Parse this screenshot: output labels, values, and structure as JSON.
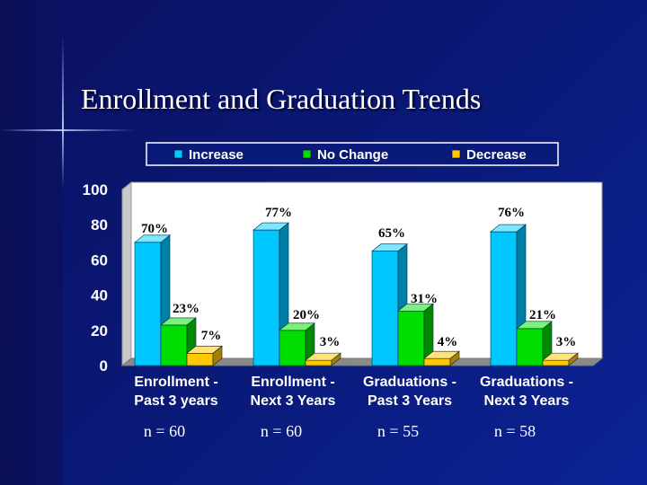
{
  "title": "Enrollment and Graduation Trends",
  "chart_data": {
    "type": "bar",
    "categories": [
      [
        "Enrollment -",
        "Past 3 years"
      ],
      [
        "Enrollment -",
        "Next 3 Years"
      ],
      [
        "Graduations -",
        "Past 3 Years"
      ],
      [
        "Graduations -",
        "Next 3 Years"
      ]
    ],
    "series": [
      {
        "name": "Increase",
        "values": [
          70,
          77,
          65,
          76
        ],
        "labels": [
          "70%",
          "77%",
          "65%",
          "76%"
        ],
        "color": "#00c8ff",
        "side": "#007fa6",
        "top": "#7ee6ff"
      },
      {
        "name": "No Change",
        "values": [
          23,
          20,
          31,
          21
        ],
        "labels": [
          "23%",
          "20%",
          "31%",
          "21%"
        ],
        "color": "#00dd00",
        "side": "#008a00",
        "top": "#7cf07c"
      },
      {
        "name": "Decrease",
        "values": [
          7,
          3,
          4,
          3
        ],
        "labels": [
          "7%",
          "3%",
          "4%",
          "3%"
        ],
        "color": "#ffc800",
        "side": "#a87f00",
        "top": "#ffe27a"
      }
    ],
    "ylim": [
      0,
      100
    ],
    "yticks": [
      0,
      20,
      40,
      60,
      80,
      100
    ],
    "legend_position": "top",
    "sample_sizes": [
      "n = 60",
      "n = 60",
      "n = 55",
      "n = 58"
    ]
  }
}
